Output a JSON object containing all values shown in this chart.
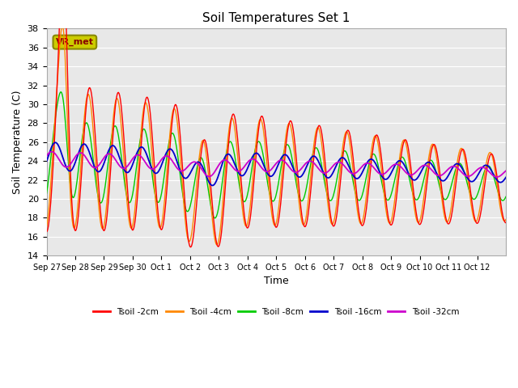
{
  "title": "Soil Temperatures Set 1",
  "xlabel": "Time",
  "ylabel": "Soil Temperature (C)",
  "ylim": [
    14,
    38
  ],
  "yticks": [
    14,
    16,
    18,
    20,
    22,
    24,
    26,
    28,
    30,
    32,
    34,
    36,
    38
  ],
  "bg_color": "#e8e8e8",
  "annotation_text": "VR_met",
  "annotation_bg": "#cccc00",
  "legend": [
    "Tsoil -2cm",
    "Tsoil -4cm",
    "Tsoil -8cm",
    "Tsoil -16cm",
    "Tsoil -32cm"
  ],
  "colors": [
    "#ff0000",
    "#ff8800",
    "#00cc00",
    "#0000cc",
    "#cc00cc"
  ],
  "x_labels": [
    "Sep 27",
    "Sep 28",
    "Sep 29",
    "Sep 30",
    "Oct 1",
    "Oct 2",
    "Oct 3",
    "Oct 4",
    "Oct 5",
    "Oct 6",
    "Oct 7",
    "Oct 8",
    "Oct 9",
    "Oct 10",
    "Oct 11",
    "Oct 12"
  ],
  "n_days": 16
}
